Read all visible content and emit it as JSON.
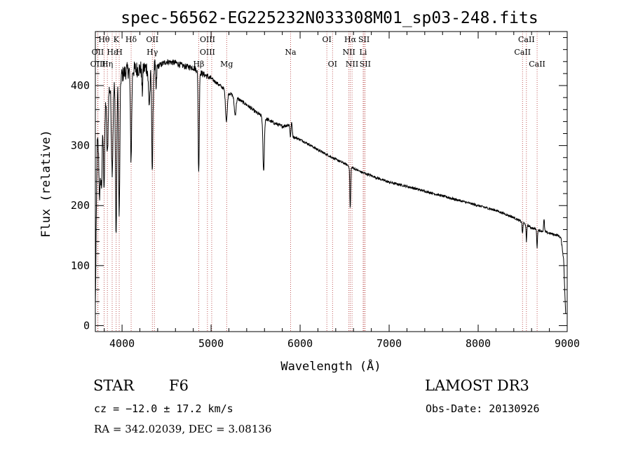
{
  "chart_data": {
    "type": "line",
    "title": "spec-56562-EG225232N033308M01_sp03-248.fits",
    "xlabel": "Wavelength (Å)",
    "ylabel": "Flux (relative)",
    "xlim": [
      3700,
      9000
    ],
    "ylim": [
      -10,
      490
    ],
    "xticks": [
      4000,
      5000,
      6000,
      7000,
      8000,
      9000
    ],
    "yticks": [
      0,
      100,
      200,
      300,
      400
    ],
    "continuum": [
      [
        3700,
        30
      ],
      [
        3720,
        300
      ],
      [
        3760,
        380
      ],
      [
        3850,
        395
      ],
      [
        3950,
        410
      ],
      [
        4050,
        425
      ],
      [
        4200,
        428
      ],
      [
        4400,
        432
      ],
      [
        4500,
        440
      ],
      [
        4600,
        438
      ],
      [
        4700,
        432
      ],
      [
        4800,
        430
      ],
      [
        4900,
        420
      ],
      [
        5000,
        412
      ],
      [
        5100,
        400
      ],
      [
        5200,
        388
      ],
      [
        5300,
        378
      ],
      [
        5400,
        368
      ],
      [
        5500,
        356
      ],
      [
        5600,
        346
      ],
      [
        5700,
        338
      ],
      [
        5800,
        332
      ],
      [
        5880,
        335
      ],
      [
        5900,
        350
      ],
      [
        5920,
        315
      ],
      [
        6000,
        310
      ],
      [
        6100,
        302
      ],
      [
        6200,
        293
      ],
      [
        6300,
        285
      ],
      [
        6400,
        277
      ],
      [
        6500,
        270
      ],
      [
        6600,
        262
      ],
      [
        6700,
        255
      ],
      [
        6800,
        250
      ],
      [
        6900,
        244
      ],
      [
        7000,
        239
      ],
      [
        7200,
        232
      ],
      [
        7400,
        224
      ],
      [
        7600,
        216
      ],
      [
        7800,
        208
      ],
      [
        8000,
        200
      ],
      [
        8200,
        192
      ],
      [
        8400,
        180
      ],
      [
        8500,
        172
      ],
      [
        8600,
        163
      ],
      [
        8700,
        158
      ],
      [
        8800,
        154
      ],
      [
        8900,
        150
      ],
      [
        8930,
        146
      ],
      [
        8960,
        110
      ],
      [
        8985,
        10
      ]
    ],
    "absorption": [
      [
        3750,
        140,
        10
      ],
      [
        3771,
        130,
        8
      ],
      [
        3798,
        150,
        8
      ],
      [
        3835,
        110,
        8
      ],
      [
        3889,
        140,
        9
      ],
      [
        3933,
        260,
        7
      ],
      [
        3968,
        230,
        7
      ],
      [
        4101,
        150,
        7
      ],
      [
        4227,
        40,
        5
      ],
      [
        4305,
        60,
        9
      ],
      [
        4340,
        170,
        7
      ],
      [
        4383,
        40,
        5
      ],
      [
        4861,
        170,
        6
      ],
      [
        5172,
        50,
        10
      ],
      [
        5270,
        30,
        10
      ],
      [
        5590,
        90,
        8
      ],
      [
        5893,
        30,
        6
      ],
      [
        6563,
        70,
        5
      ],
      [
        8498,
        20,
        4
      ],
      [
        8542,
        30,
        4
      ],
      [
        8662,
        30,
        4
      ]
    ],
    "emission": [
      [
        8740,
        20,
        5
      ]
    ],
    "line_markers": [
      {
        "label": "Hθ",
        "x": 3798,
        "row": 0
      },
      {
        "label": "K",
        "x": 3934,
        "row": 0
      },
      {
        "label": "Hδ",
        "x": 4102,
        "row": 0
      },
      {
        "label": "OII",
        "x": 4340,
        "row": 0
      },
      {
        "label": "OIII",
        "x": 4960,
        "row": 0
      },
      {
        "label": "OI",
        "x": 6300,
        "row": 0
      },
      {
        "label": "Hα",
        "x": 6563,
        "row": 0
      },
      {
        "label": "SII",
        "x": 6717,
        "row": 0
      },
      {
        "label": "CaII",
        "x": 8542,
        "row": 0
      },
      {
        "label": "OII",
        "x": 3727,
        "row": 1
      },
      {
        "label": "Hε",
        "x": 3889,
        "row": 1
      },
      {
        "label": "H",
        "x": 3968,
        "row": 1
      },
      {
        "label": "Hγ",
        "x": 4340,
        "row": 1
      },
      {
        "label": "OIII",
        "x": 4959,
        "row": 1
      },
      {
        "label": "Na",
        "x": 5893,
        "row": 1
      },
      {
        "label": "NII",
        "x": 6548,
        "row": 1
      },
      {
        "label": "Li",
        "x": 6708,
        "row": 1
      },
      {
        "label": "CaII",
        "x": 8498,
        "row": 1
      },
      {
        "label": "OIII",
        "x": 3729,
        "row": 2
      },
      {
        "label": "Hη",
        "x": 3835,
        "row": 2
      },
      {
        "label": "Hβ",
        "x": 4861,
        "row": 2
      },
      {
        "label": "Mg",
        "x": 5175,
        "row": 2
      },
      {
        "label": "OI",
        "x": 6364,
        "row": 2
      },
      {
        "label": "NII",
        "x": 6583,
        "row": 2
      },
      {
        "label": "SII",
        "x": 6731,
        "row": 2
      },
      {
        "label": "CaII",
        "x": 8662,
        "row": 2
      }
    ],
    "marker_lines": [
      3727,
      3729,
      3798,
      3835,
      3889,
      3934,
      3968,
      4102,
      4340,
      4363,
      4861,
      4959,
      5007,
      5175,
      5893,
      6300,
      6364,
      6548,
      6563,
      6583,
      6708,
      6717,
      6731,
      8498,
      8542,
      8662
    ]
  },
  "info": {
    "object_class": "STAR",
    "subclass": "F6",
    "survey": "LAMOST DR3",
    "redshift": "cz = −12.0 ± 17.2 km/s",
    "obs_date": "Obs-Date: 20130926",
    "coords": "RA = 342.02039, DEC =   3.08136"
  }
}
